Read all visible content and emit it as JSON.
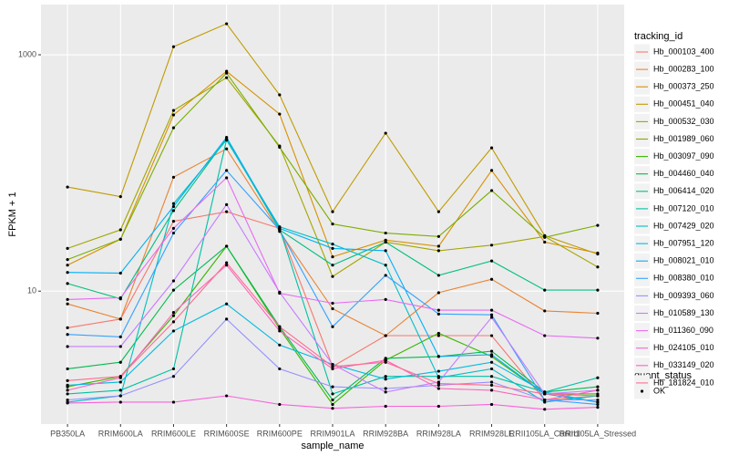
{
  "chart_data": {
    "type": "line",
    "log_y": true,
    "grid": true,
    "xlabel": "sample_name",
    "ylabel": "FPKM + 1",
    "legend_title": "tracking_id",
    "legend_position": "right",
    "shape_legend": {
      "title": "quant_status",
      "labels": [
        "OK"
      ]
    },
    "ylim": [
      0.75,
      2660
    ],
    "yticks": [
      10,
      1000
    ],
    "categories": [
      "PB350LA",
      "RRIM600LA",
      "RRIM600LE",
      "RRIM600SE",
      "RRIM600PE",
      "RRIM901LA",
      "RRIM928BA",
      "RRIM928LA",
      "RRIM928LE",
      "RRII105LA_Control",
      "RRII105LA_Stressed"
    ],
    "series": [
      {
        "name": "Hb_000103_400",
        "color": "#F8766D",
        "values": [
          4.9,
          5.8,
          39,
          47,
          34,
          2.3,
          4.2,
          4.2,
          4.2,
          1.2,
          1.3
        ]
      },
      {
        "name": "Hb_000283_100",
        "color": "#EA8331",
        "values": [
          7.8,
          5.8,
          92,
          160,
          32,
          7.1,
          4.2,
          9.7,
          12.6,
          6.8,
          6.5
        ]
      },
      {
        "name": "Hb_000373_250",
        "color": "#D89000",
        "values": [
          16.6,
          27.5,
          310,
          725,
          315,
          19.5,
          27,
          24,
          105,
          26,
          21
        ]
      },
      {
        "name": "Hb_000451_040",
        "color": "#C09B00",
        "values": [
          76,
          63,
          1170,
          1830,
          458,
          47,
          217,
          47,
          163,
          29.5,
          20.6
        ]
      },
      {
        "name": "Hb_000532_030",
        "color": "#A3A500",
        "values": [
          23,
          33,
          338,
          640,
          169,
          13.3,
          26,
          22,
          24.5,
          29,
          16
        ]
      },
      {
        "name": "Hb_001989_060",
        "color": "#7CAE00",
        "values": [
          18.5,
          27.5,
          241,
          700,
          165,
          37,
          31,
          29,
          71,
          28.5,
          36
        ]
      },
      {
        "name": "Hb_003097_090",
        "color": "#39B600",
        "values": [
          1.55,
          1.9,
          6.2,
          24,
          4.8,
          1.1,
          2.6,
          4.4,
          2.8,
          1.35,
          1.35
        ]
      },
      {
        "name": "Hb_004460_040",
        "color": "#00BB4E",
        "values": [
          2.2,
          2.5,
          10.2,
          24,
          5,
          1.2,
          2.7,
          2.8,
          3.1,
          1.4,
          1.55
        ]
      },
      {
        "name": "Hb_006414_020",
        "color": "#00BF7D",
        "values": [
          11.6,
          8.6,
          48,
          195,
          33,
          16.6,
          26,
          13.6,
          18,
          10.2,
          10.2
        ]
      },
      {
        "name": "Hb_007120_010",
        "color": "#00C1A3",
        "values": [
          1.35,
          1.45,
          2.2,
          190,
          34,
          1.35,
          1.9,
          1.9,
          1.9,
          1.4,
          1.85
        ]
      },
      {
        "name": "Hb_007429_020",
        "color": "#00BFC4",
        "values": [
          1.15,
          1.3,
          55,
          190,
          35,
          25,
          16.6,
          1.85,
          2.2,
          1.15,
          1.3
        ]
      },
      {
        "name": "Hb_007951_120",
        "color": "#00BAE0",
        "values": [
          1.6,
          1.7,
          4.6,
          7.8,
          3.5,
          2.4,
          1.8,
          2.1,
          2.5,
          1.4,
          1.15
        ]
      },
      {
        "name": "Hb_008021_010",
        "color": "#00B0F6",
        "values": [
          14.4,
          14.2,
          52,
          200,
          34,
          23,
          22,
          2.8,
          2.9,
          1.35,
          1.15
        ]
      },
      {
        "name": "Hb_008380_010",
        "color": "#35A2FF",
        "values": [
          4.3,
          4.1,
          31,
          105,
          33,
          5,
          13.6,
          6.4,
          6.3,
          1.2,
          1.1
        ]
      },
      {
        "name": "Hb_009393_060",
        "color": "#9590FF",
        "values": [
          1.2,
          1.3,
          1.9,
          5.8,
          2.2,
          1.55,
          1.5,
          1.6,
          1.7,
          1.2,
          1.2
        ]
      },
      {
        "name": "Hb_010589_130",
        "color": "#C77CFF",
        "values": [
          3.4,
          3.4,
          12.2,
          54,
          9.8,
          2.4,
          1.4,
          1.7,
          6,
          1.35,
          1.45
        ]
      },
      {
        "name": "Hb_011360_090",
        "color": "#E76BF3",
        "values": [
          8.5,
          8.8,
          34,
          91,
          9.6,
          7.9,
          8.5,
          6.9,
          6.9,
          4.2,
          4.0
        ]
      },
      {
        "name": "Hb_024105_010",
        "color": "#FA62DB",
        "values": [
          1.13,
          1.15,
          1.15,
          1.3,
          1.1,
          1.02,
          1.06,
          1.06,
          1.1,
          1.0,
          1.04
        ]
      },
      {
        "name": "Hb_033149_020",
        "color": "#FF62BC",
        "values": [
          1.45,
          1.85,
          6.6,
          16.6,
          4.6,
          2.2,
          2.6,
          1.5,
          1.45,
          1.2,
          1.45
        ]
      },
      {
        "name": "Hb_181824_010",
        "color": "#FF6C91",
        "values": [
          1.75,
          1.9,
          5.5,
          17.4,
          5,
          2.3,
          2.5,
          1.65,
          1.6,
          1.35,
          1.3
        ]
      }
    ]
  }
}
